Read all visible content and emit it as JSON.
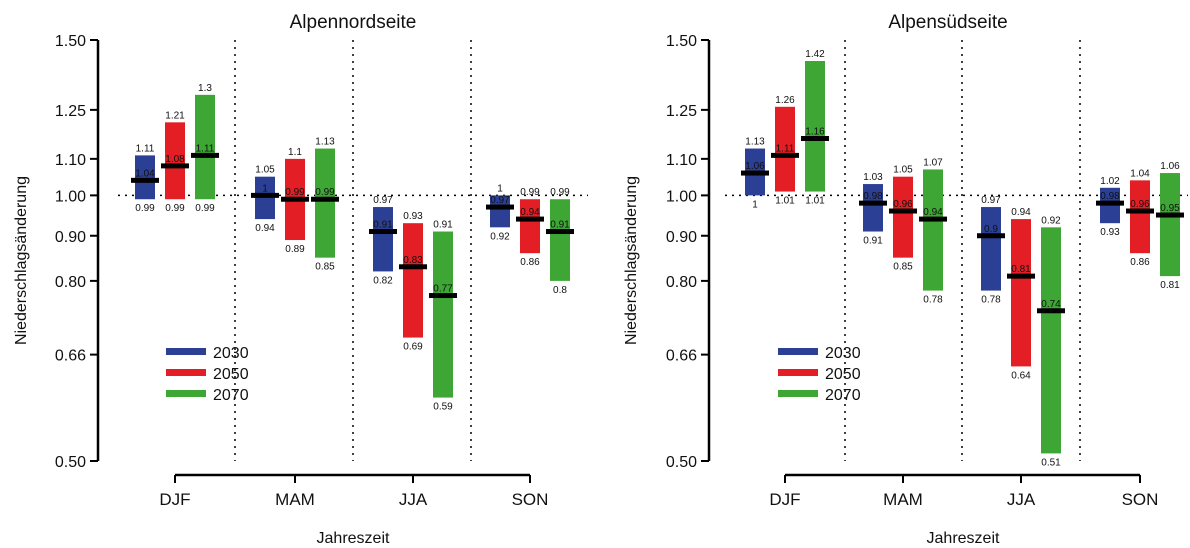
{
  "chart_data": [
    {
      "type": "bar",
      "title": "Alpennordseite",
      "xlabel": "Jahreszeit",
      "ylabel": "Niederschlagsänderung",
      "ylim": [
        0.5,
        1.5
      ],
      "yscale": "log",
      "yticks": [
        "0.50",
        "0.66",
        "0.80",
        "0.90",
        "1.00",
        "1.10",
        "1.25",
        "1.50"
      ],
      "ytick_values": [
        0.5,
        0.66,
        0.8,
        0.9,
        1.0,
        1.1,
        1.25,
        1.5
      ],
      "categories": [
        "DJF",
        "MAM",
        "JJA",
        "SON"
      ],
      "legend_position": "bottom-left",
      "series": [
        {
          "name": "2030",
          "color": "#2b3f94",
          "low": [
            0.99,
            0.94,
            0.82,
            0.92
          ],
          "median": [
            1.04,
            1.0,
            0.91,
            0.97
          ],
          "high": [
            1.11,
            1.05,
            0.97,
            1.0
          ],
          "low_labels": [
            "0.99",
            "0.94",
            "0.82",
            "0.92"
          ],
          "median_labels": [
            "1.04",
            "1",
            "0.91",
            "0.97"
          ],
          "high_labels": [
            "1.11",
            "1.05",
            "0.97",
            "1"
          ]
        },
        {
          "name": "2050",
          "color": "#e31e24",
          "low": [
            0.99,
            0.89,
            0.69,
            0.86
          ],
          "median": [
            1.08,
            0.99,
            0.83,
            0.94
          ],
          "high": [
            1.21,
            1.1,
            0.93,
            0.99
          ],
          "low_labels": [
            "0.99",
            "0.89",
            "0.69",
            "0.86"
          ],
          "median_labels": [
            "1.08",
            "0.99",
            "0.83",
            "0.94"
          ],
          "high_labels": [
            "1.21",
            "1.1",
            "0.93",
            "0.99"
          ]
        },
        {
          "name": "2070",
          "color": "#3da634",
          "low": [
            0.99,
            0.85,
            0.59,
            0.8
          ],
          "median": [
            1.11,
            0.99,
            0.77,
            0.91
          ],
          "high": [
            1.3,
            1.13,
            0.91,
            0.99
          ],
          "low_labels": [
            "0.99",
            "0.85",
            "0.59",
            "0.8"
          ],
          "median_labels": [
            "1.11",
            "0.99",
            "0.77",
            "0.91"
          ],
          "high_labels": [
            "1.3",
            "1.13",
            "0.91",
            "0.99"
          ]
        }
      ]
    },
    {
      "type": "bar",
      "title": "Alpensüdseite",
      "xlabel": "Jahreszeit",
      "ylabel": "Niederschlagsänderung",
      "ylim": [
        0.5,
        1.5
      ],
      "yscale": "log",
      "yticks": [
        "0.50",
        "0.66",
        "0.80",
        "0.90",
        "1.00",
        "1.10",
        "1.25",
        "1.50"
      ],
      "ytick_values": [
        0.5,
        0.66,
        0.8,
        0.9,
        1.0,
        1.1,
        1.25,
        1.5
      ],
      "categories": [
        "DJF",
        "MAM",
        "JJA",
        "SON"
      ],
      "legend_position": "bottom-left",
      "series": [
        {
          "name": "2030",
          "color": "#2b3f94",
          "low": [
            1.0,
            0.91,
            0.78,
            0.93
          ],
          "median": [
            1.06,
            0.98,
            0.9,
            0.98
          ],
          "high": [
            1.13,
            1.03,
            0.97,
            1.02
          ],
          "low_labels": [
            "1",
            "0.91",
            "0.78",
            "0.93"
          ],
          "median_labels": [
            "1.06",
            "0.98",
            "0.9",
            "0.98"
          ],
          "high_labels": [
            "1.13",
            "1.03",
            "0.97",
            "1.02"
          ]
        },
        {
          "name": "2050",
          "color": "#e31e24",
          "low": [
            1.01,
            0.85,
            0.64,
            0.86
          ],
          "median": [
            1.11,
            0.96,
            0.81,
            0.96
          ],
          "high": [
            1.26,
            1.05,
            0.94,
            1.04
          ],
          "low_labels": [
            "1.01",
            "0.85",
            "0.64",
            "0.86"
          ],
          "median_labels": [
            "1.11",
            "0.96",
            "0.81",
            "0.96"
          ],
          "high_labels": [
            "1.26",
            "1.05",
            "0.94",
            "1.04"
          ]
        },
        {
          "name": "2070",
          "color": "#3da634",
          "low": [
            1.01,
            0.78,
            0.51,
            0.81
          ],
          "median": [
            1.16,
            0.94,
            0.74,
            0.95
          ],
          "high": [
            1.42,
            1.07,
            0.92,
            1.06
          ],
          "low_labels": [
            "1.01",
            "0.78",
            "0.51",
            "0.81"
          ],
          "median_labels": [
            "1.16",
            "0.94",
            "0.74",
            "0.95"
          ],
          "high_labels": [
            "1.42",
            "1.07",
            "0.92",
            "1.06"
          ]
        }
      ]
    }
  ]
}
